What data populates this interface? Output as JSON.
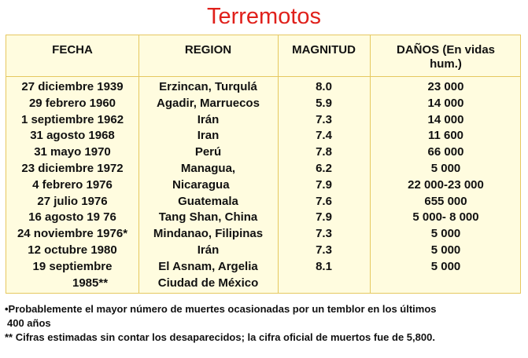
{
  "title": "Terremotos",
  "headers": {
    "fecha": "FECHA",
    "region": "REGION",
    "magnitud": "MAGNITUD",
    "danos_line1": "DAÑOS (En vidas",
    "danos_line2": "hum.)"
  },
  "fecha": [
    "27 diciembre 1939",
    "29 febrero 1960",
    "1 septiembre 1962",
    "31 agosto 1968",
    "31 mayo 1970",
    "23 diciembre 1972",
    "4 febrero 1976",
    "27 julio 1976",
    "16 agosto 19 76",
    "24 noviembre 1976*",
    "12 octubre 1980",
    "19 septiembre",
    "1985**"
  ],
  "region": [
    "Erzincan, Turqulá",
    "Agadir, Marruecos",
    "Irán",
    "Iran",
    "Perú",
    "Managua,",
    "Nicaragua",
    "Guatemala",
    "Tang Shan, China",
    "Mindanao, Filipinas",
    "Irán",
    "El Asnam, Argelia",
    "Ciudad de México"
  ],
  "magnitud": [
    "8.0",
    "5.9",
    "7.3",
    "7.4",
    "7.8",
    "6.2",
    "7.9",
    "7.6",
    "7.9",
    "7.3",
    "7.3",
    "8.1",
    ""
  ],
  "danos": [
    "23 000",
    "14 000",
    "14 000",
    "11 600",
    "66 000",
    "5 000",
    "22 000-23 000",
    "655 000",
    "5 000- 8 000",
    "5 000",
    "5 000",
    "5 000",
    ""
  ],
  "notes": {
    "line1": "•Probablemente el mayor número de muertes ocasionadas por un temblor en los últimos",
    "line2": "400 años",
    "line3": "** Cifras estimadas sin contar los desaparecidos; la cifra oficial de muertos fue de 5,800."
  }
}
